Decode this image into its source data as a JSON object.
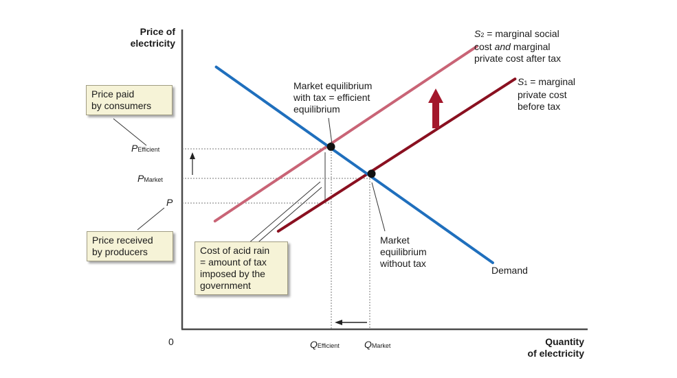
{
  "chart_data": {
    "type": "line",
    "axes": {
      "ylabel_line1": "Price of",
      "ylabel_line2": "electricity",
      "xlabel_line1": "Quantity",
      "xlabel_line2": "of electricity",
      "origin": "0",
      "xlim": [
        0,
        100
      ],
      "ylim": [
        0,
        100
      ]
    },
    "series": [
      {
        "name": "Demand",
        "color": "#1f6fbd",
        "x": [
          8.4,
          76.6
        ],
        "y": [
          87.5,
          22.2
        ]
      },
      {
        "name": "S1",
        "color": "#8a1020",
        "x": [
          23.7,
          82.1
        ],
        "y": [
          32.7,
          83.5
        ]
      },
      {
        "name": "S2",
        "color": "#c96476",
        "x": [
          8.1,
          72.6
        ],
        "y": [
          36.1,
          94.3
        ]
      }
    ],
    "points": [
      {
        "name": "efficient-equilibrium",
        "x": 36.7,
        "y": 60.9
      },
      {
        "name": "market-equilibrium",
        "x": 46.7,
        "y": 51.9
      }
    ],
    "y_ticks": {
      "p_efficient_main": "P",
      "p_efficient_sub": "Efficient",
      "p_market_main": "P",
      "p_market_sub": "Market",
      "p_main": "P"
    },
    "x_ticks": {
      "q_efficient_main": "Q",
      "q_efficient_sub": "Efficient",
      "q_market_main": "Q",
      "q_market_sub": "Market"
    },
    "labels": {
      "demand": "Demand",
      "s2_main": "S",
      "s2_sub": "2",
      "s2_line1": " = marginal social",
      "s2_line2a": "cost ",
      "s2_line2b": "and",
      "s2_line2c": " marginal",
      "s2_line3": "private cost after tax",
      "s1_main": "S",
      "s1_sub": "1",
      "s1_line1": " = marginal",
      "s1_line2": "private cost",
      "s1_line3": "before tax",
      "eq_tax_line1": "Market equilibrium",
      "eq_tax_line2": "with tax = efficient",
      "eq_tax_line3": "equilibrium",
      "eq_notax_line1": "Market",
      "eq_notax_line2": "equilibrium",
      "eq_notax_line3": "without tax"
    },
    "callouts": {
      "consumers_line1": "Price paid",
      "consumers_line2": "by consumers",
      "producers_line1": "Price received",
      "producers_line2": "by producers",
      "acid_line1": "Cost of acid rain",
      "acid_line2": "= amount of tax",
      "acid_line3": "imposed by the",
      "acid_line4": "government"
    },
    "colors": {
      "demand": "#1f6fbd",
      "s1": "#8a1020",
      "s2": "#c96476",
      "arrow": "#a3172b",
      "callout_fill": "#f6f3d7"
    }
  }
}
